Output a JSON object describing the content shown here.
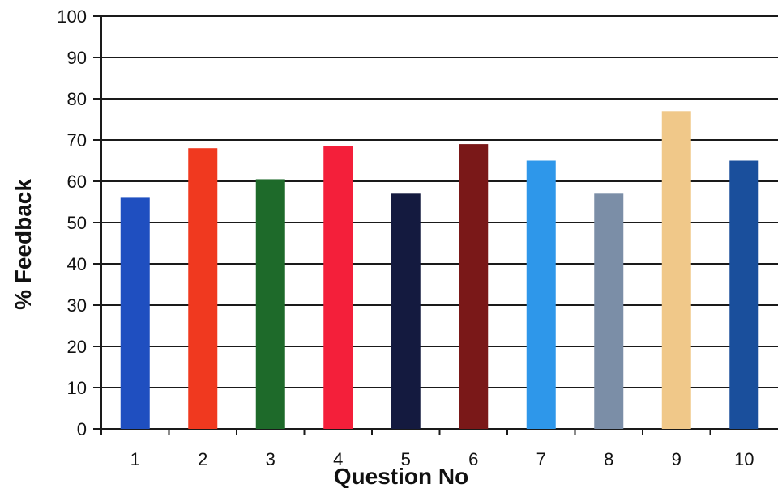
{
  "chart_data": {
    "type": "bar",
    "title": "",
    "xlabel": "Question No",
    "ylabel": "% Feedback",
    "ylim": [
      0,
      100
    ],
    "yticks": [
      "0",
      "10",
      "20",
      "30",
      "40",
      "50",
      "60",
      "70",
      "80",
      "90",
      "100"
    ],
    "grid": true,
    "categories": [
      "1",
      "2",
      "3",
      "4",
      "5",
      "6",
      "7",
      "8",
      "9",
      "10"
    ],
    "values": [
      56,
      68,
      60.5,
      68.5,
      57,
      69,
      65,
      57,
      77,
      65
    ],
    "colors": [
      "#1f4fc0",
      "#f0391f",
      "#1e6a2a",
      "#f41f3a",
      "#141a3f",
      "#7a1818",
      "#2e97ea",
      "#7b8ea7",
      "#f0c889",
      "#1a4f9c"
    ]
  }
}
